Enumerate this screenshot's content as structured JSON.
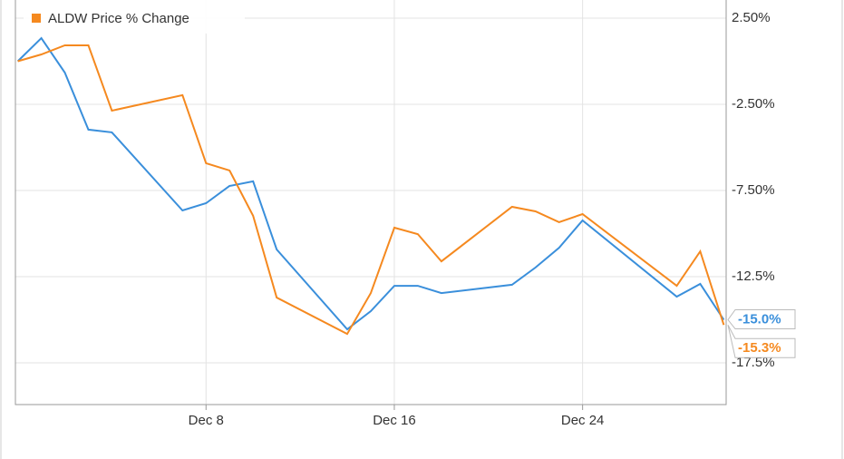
{
  "chart_data": {
    "type": "line",
    "x": [
      0,
      1,
      2,
      3,
      4,
      7,
      8,
      9,
      10,
      11,
      14,
      15,
      16,
      17,
      18,
      21,
      22,
      23,
      24,
      28,
      29,
      30
    ],
    "xlim": [
      -0.1,
      30.1
    ],
    "xticks": [
      {
        "value": 8,
        "label": "Dec 8"
      },
      {
        "value": 16,
        "label": "Dec 16"
      },
      {
        "value": 24,
        "label": "Dec 24"
      }
    ],
    "ylim": [
      -19.92,
      3.55
    ],
    "yticks": [
      {
        "value": 2.5,
        "label": "2.50%"
      },
      {
        "value": -2.5,
        "label": "-2.50%"
      },
      {
        "value": -7.5,
        "label": "-7.50%"
      },
      {
        "value": -12.5,
        "label": "-12.5%"
      },
      {
        "value": -17.5,
        "label": "-17.5%"
      }
    ],
    "grid": true,
    "series": [
      {
        "color": "#3a8fdb",
        "values": [
          0.0,
          1.34,
          -0.66,
          -3.97,
          -4.13,
          -8.66,
          -8.24,
          -7.24,
          -6.97,
          -10.92,
          -15.55,
          -14.5,
          -13.03,
          -13.03,
          -13.45,
          -12.97,
          -11.97,
          -10.82,
          -9.24,
          -13.66,
          -12.92,
          -15.0
        ],
        "value_labels": [
          null,
          null,
          null,
          null,
          null,
          null,
          null,
          null,
          null,
          null,
          null,
          null,
          null,
          null,
          null,
          null,
          null,
          null,
          null,
          null,
          null,
          "-15.0%"
        ]
      },
      {
        "name": "ALDW Price % Change",
        "color": "#f5891f",
        "values": [
          0.0,
          0.39,
          0.92,
          0.92,
          -2.87,
          -1.97,
          -5.92,
          -6.34,
          -8.97,
          -13.71,
          -15.82,
          -13.45,
          -9.66,
          -10.03,
          -11.61,
          -8.45,
          -8.71,
          -9.34,
          -8.87,
          -13.03,
          -11.03,
          -15.3
        ],
        "value_labels": [
          null,
          null,
          null,
          null,
          null,
          null,
          null,
          null,
          null,
          null,
          null,
          null,
          null,
          null,
          null,
          null,
          null,
          null,
          null,
          null,
          null,
          "-15.3%"
        ]
      }
    ]
  }
}
